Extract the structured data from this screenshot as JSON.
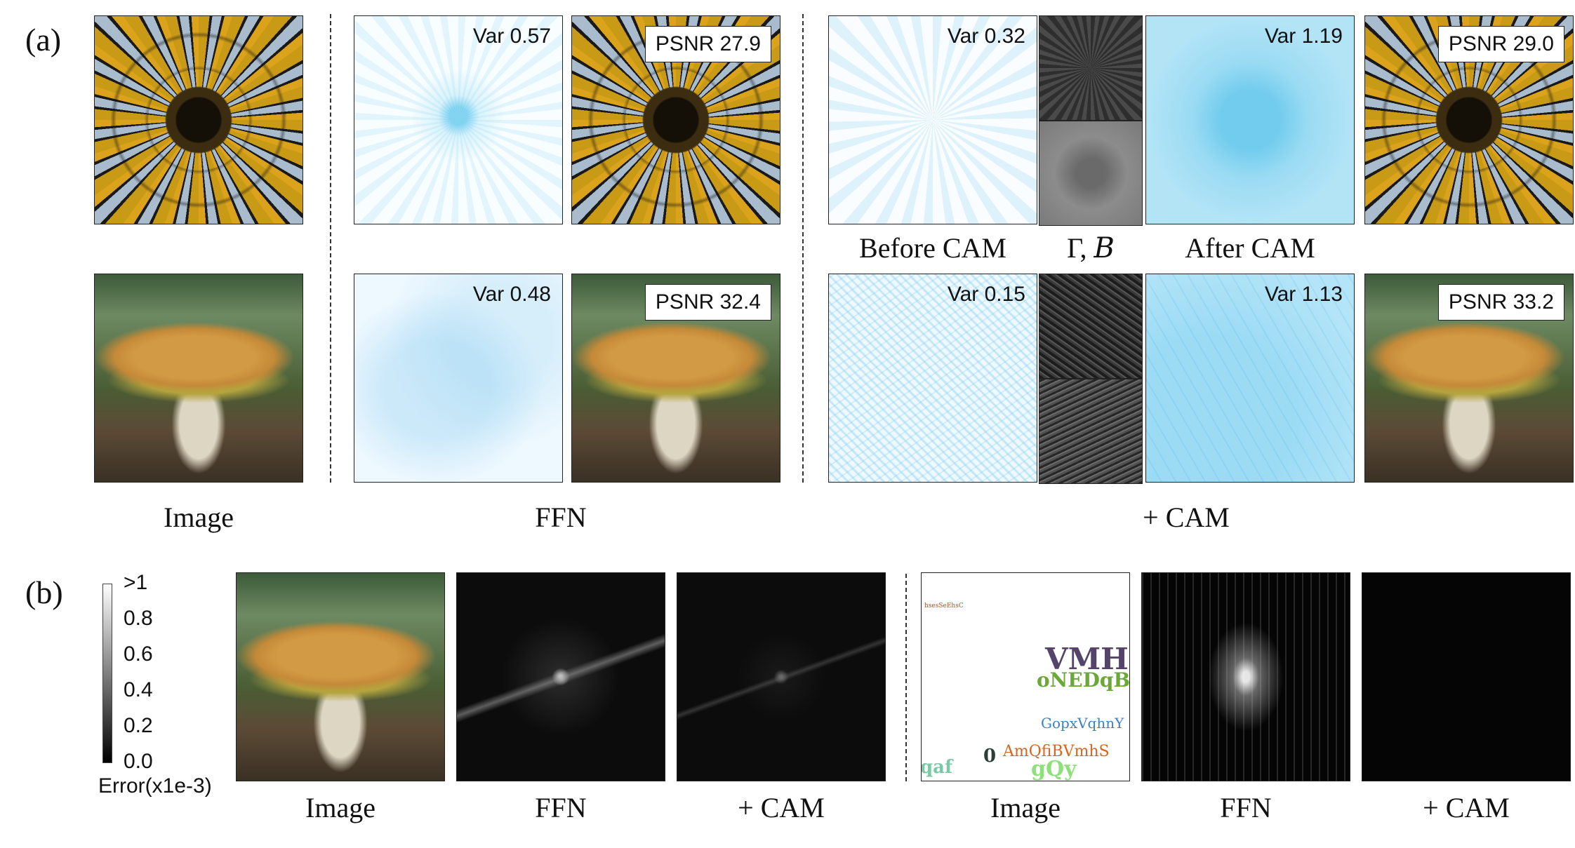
{
  "labels": {
    "a": "(a)",
    "b": "(b)"
  },
  "part_a": {
    "row1": {
      "ffn_var": "Var 0.57",
      "ffn_psnr": "PSNR 27.9",
      "before_var": "Var 0.32",
      "after_var": "Var 1.19",
      "cam_psnr": "PSNR 29.0"
    },
    "row2": {
      "ffn_var": "Var 0.48",
      "ffn_psnr": "PSNR 32.4",
      "before_var": "Var 0.15",
      "after_var": "Var 1.13",
      "cam_psnr": "PSNR 33.2"
    },
    "mid_captions": {
      "before": "Before CAM",
      "gamma_b": "Γ, 𝐵",
      "after": "After CAM"
    },
    "captions": {
      "image": "Image",
      "ffn": "FFN",
      "cam": "+ CAM"
    }
  },
  "part_b": {
    "colorbar": {
      "title": "Error(x1e-3)",
      "ticks": [
        ">1",
        "0.8",
        "0.6",
        "0.4",
        "0.2",
        "0.0"
      ]
    },
    "captions": [
      "Image",
      "FFN",
      "+ CAM",
      "Image",
      "FFN",
      "+ CAM"
    ],
    "text_image_words": [
      "VMH",
      "oNEDqBI",
      "GopxVqhnY",
      "AmQfiBVmhS",
      "0",
      "qaf",
      "gQy",
      "hsesSeEhsC"
    ]
  }
}
